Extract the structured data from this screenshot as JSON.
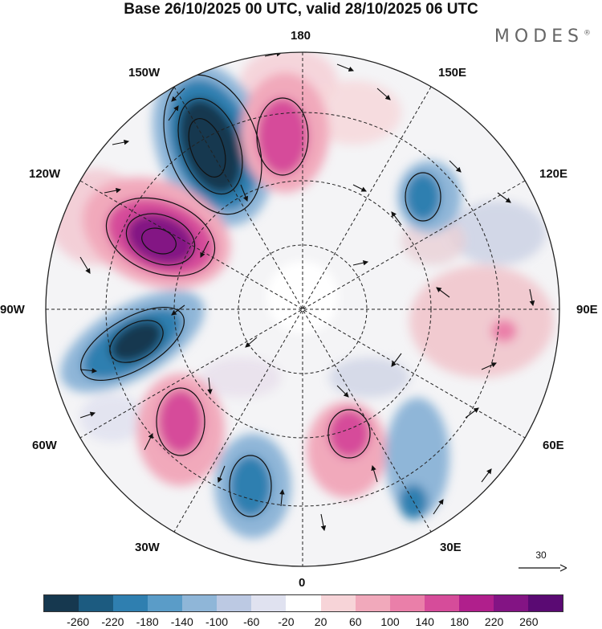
{
  "header": {
    "title": "Base 26/10/2025 00 UTC, valid 28/10/2025 06 UTC",
    "brand": "MODES",
    "brand_mark": "®"
  },
  "longitude_labels": {
    "deg180": "180",
    "e150": "150E",
    "w150": "150W",
    "e120": "120E",
    "w120": "120W",
    "e90": "90E",
    "w90": "90W",
    "e60": "60E",
    "w60": "60W",
    "e30": "30E",
    "w30": "30W",
    "deg0": "0"
  },
  "reference_vector": {
    "value": "30"
  },
  "colorbar": {
    "colors": [
      "#16384f",
      "#1c5b80",
      "#2f7fb0",
      "#5a9cc8",
      "#8fb6d8",
      "#bcc9e3",
      "#e0e2f0",
      "#ffffff",
      "#f7d4d8",
      "#f1a9bb",
      "#ea7fa9",
      "#d64c9a",
      "#b01f8c",
      "#831484",
      "#5a0a73"
    ],
    "ticks": [
      "-260",
      "-220",
      "-180",
      "-140",
      "-100",
      "-60",
      "-20",
      "20",
      "60",
      "100",
      "140",
      "180",
      "220",
      "260"
    ]
  }
}
